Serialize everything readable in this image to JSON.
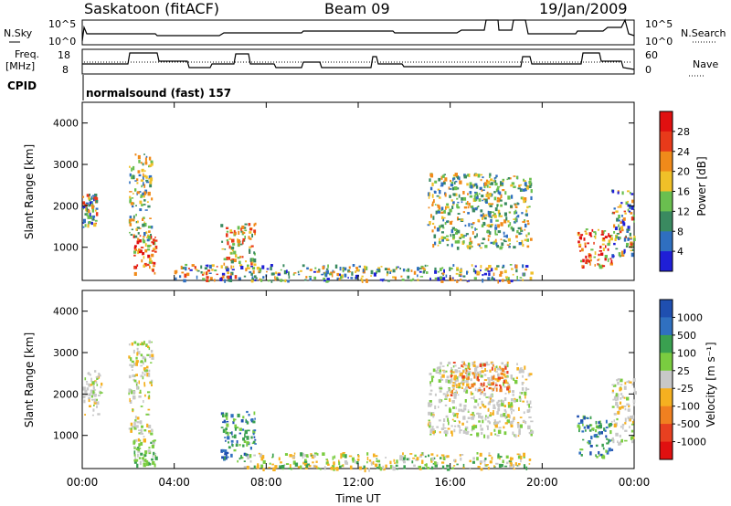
{
  "header": {
    "station": "Saskatoon (fitACF)",
    "beam": "Beam 09",
    "date": "19/Jan/2009"
  },
  "top_panels": {
    "nsky_label": "N.Sky",
    "nsky_ticks": [
      "10^5",
      "10^0"
    ],
    "nsearch_label": "N.Search",
    "freq_label_line1": "Freq.",
    "freq_label_line2": "[MHz]",
    "freq_ticks": [
      "18",
      "8"
    ],
    "nave_label": "Nave",
    "nave_ticks": [
      "60",
      "0"
    ],
    "cpid_label": "CPID",
    "cpid_value": "normalsound (fast) 157"
  },
  "time_axis": {
    "ticks": [
      "00:00",
      "04:00",
      "08:00",
      "12:00",
      "16:00",
      "20:00",
      "00:00"
    ],
    "label": "Time UT"
  },
  "colors": {
    "power": [
      "#1f1fd6",
      "#2f6fc0",
      "#3a8a60",
      "#6abf4f",
      "#f0c028",
      "#f08a1a",
      "#e83a1a",
      "#e01010"
    ],
    "velocity": [
      "#1f4fb0",
      "#3070c0",
      "#3aa050",
      "#7acc40",
      "#c8c8c8",
      "#f5b020",
      "#f08020",
      "#e84020",
      "#e01010"
    ]
  },
  "chart_data": [
    {
      "type": "heatmap",
      "panel": "power",
      "ylabel": "Slant Range [km]",
      "y_ticks": [
        "1000",
        "2000",
        "3000",
        "4000"
      ],
      "ylim": [
        200,
        4500
      ],
      "x_range_hours": [
        0,
        24
      ],
      "colorbar_label": "Power [dB]",
      "colorbar_ticks": [
        "4",
        "8",
        "12",
        "16",
        "20",
        "24",
        "28"
      ],
      "scatter_regions": [
        {
          "t": [
            0.0,
            0.6
          ],
          "r": [
            1500,
            2300
          ],
          "level": "mixed"
        },
        {
          "t": [
            2.2,
            3.2
          ],
          "r": [
            400,
            1300
          ],
          "level": "high"
        },
        {
          "t": [
            2.0,
            3.0
          ],
          "r": [
            1200,
            3300
          ],
          "level": "mid"
        },
        {
          "t": [
            6.0,
            7.5
          ],
          "r": [
            500,
            1600
          ],
          "level": "mid-high"
        },
        {
          "t": [
            4.0,
            7.0
          ],
          "r": [
            200,
            600
          ],
          "level": "mixed"
        },
        {
          "t": [
            7.0,
            19.5
          ],
          "r": [
            200,
            600
          ],
          "level": "low-mid"
        },
        {
          "t": [
            15.0,
            19.5
          ],
          "r": [
            1000,
            2800
          ],
          "level": "mid"
        },
        {
          "t": [
            21.5,
            23.0
          ],
          "r": [
            500,
            1500
          ],
          "level": "high"
        },
        {
          "t": [
            23.0,
            24.0
          ],
          "r": [
            800,
            2400
          ],
          "level": "mixed"
        }
      ]
    },
    {
      "type": "heatmap",
      "panel": "velocity",
      "ylabel": "Slant Range [km]",
      "y_ticks": [
        "1000",
        "2000",
        "3000",
        "4000"
      ],
      "ylim": [
        200,
        4500
      ],
      "x_range_hours": [
        0,
        24
      ],
      "colorbar_label": "Velocity [m s⁻¹]",
      "colorbar_ticks": [
        "1000",
        "500",
        "100",
        "25",
        "-25",
        "-100",
        "-500",
        "-1000"
      ],
      "scatter_regions": [
        {
          "t": [
            0.0,
            0.8
          ],
          "r": [
            1500,
            2600
          ],
          "level": "grey"
        },
        {
          "t": [
            2.2,
            3.2
          ],
          "r": [
            300,
            900
          ],
          "level": "green"
        },
        {
          "t": [
            2.0,
            3.0
          ],
          "r": [
            900,
            3300
          ],
          "level": "grey-green"
        },
        {
          "t": [
            6.0,
            7.5
          ],
          "r": [
            400,
            1600
          ],
          "level": "green-blue"
        },
        {
          "t": [
            7.0,
            19.5
          ],
          "r": [
            200,
            600
          ],
          "level": "yellow-green"
        },
        {
          "t": [
            15.0,
            19.5
          ],
          "r": [
            1000,
            2800
          ],
          "level": "grey"
        },
        {
          "t": [
            16.0,
            18.5
          ],
          "r": [
            2000,
            2800
          ],
          "level": "orange"
        },
        {
          "t": [
            21.5,
            23.0
          ],
          "r": [
            500,
            1500
          ],
          "level": "green-blue"
        },
        {
          "t": [
            23.0,
            24.0
          ],
          "r": [
            800,
            2400
          ],
          "level": "grey"
        }
      ]
    }
  ]
}
